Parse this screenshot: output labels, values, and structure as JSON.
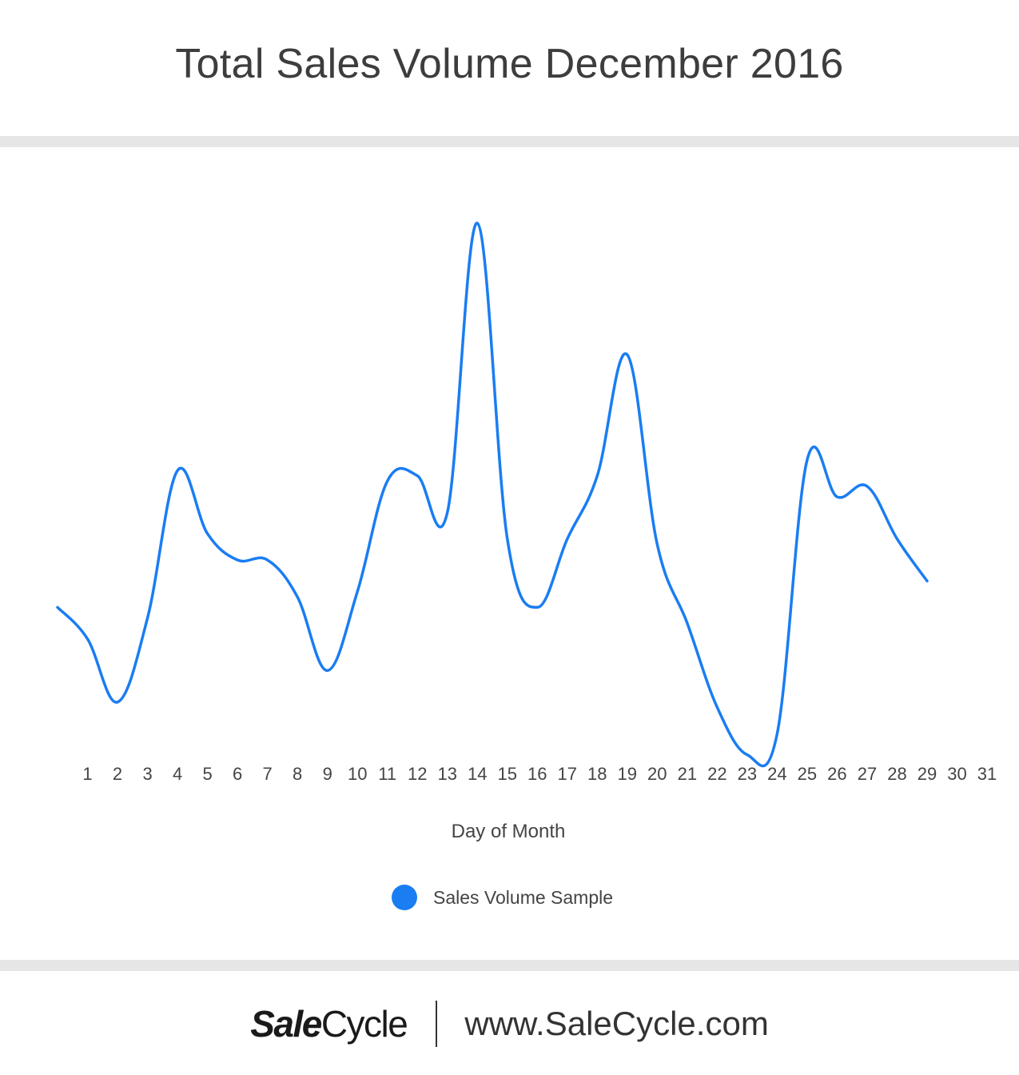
{
  "header": {
    "title": "Total Sales Volume December 2016"
  },
  "chart_data": {
    "type": "line",
    "title": "Total Sales Volume December 2016",
    "xlabel": "Day of Month",
    "ylabel": "",
    "categories": [
      "1",
      "2",
      "3",
      "4",
      "5",
      "6",
      "7",
      "8",
      "9",
      "10",
      "11",
      "12",
      "13",
      "14",
      "15",
      "16",
      "17",
      "18",
      "19",
      "20",
      "21",
      "22",
      "23",
      "24",
      "25",
      "26",
      "27",
      "28",
      "29",
      "30",
      "31"
    ],
    "ylim": [
      0,
      100
    ],
    "grid": false,
    "legend": "bottom",
    "series": [
      {
        "name": "Sales Volume Sample",
        "color": "#1a7df2",
        "x": [
          1,
          2,
          3,
          4,
          5,
          6,
          7,
          8,
          9,
          10,
          11,
          12,
          13,
          14,
          15,
          16,
          17,
          18,
          19,
          20,
          21,
          22,
          23,
          24,
          25,
          26,
          27,
          28,
          29,
          30
        ],
        "values": [
          27,
          21,
          9,
          25,
          53,
          41,
          36,
          36,
          29,
          15,
          30,
          51,
          52,
          45,
          100,
          40,
          27,
          40,
          52,
          75,
          39,
          24,
          8,
          -1,
          3,
          55,
          48,
          50,
          40,
          32
        ]
      }
    ]
  },
  "footer": {
    "brand_bold": "Sale",
    "brand_light": "Cycle",
    "url": "www.SaleCycle.com"
  }
}
